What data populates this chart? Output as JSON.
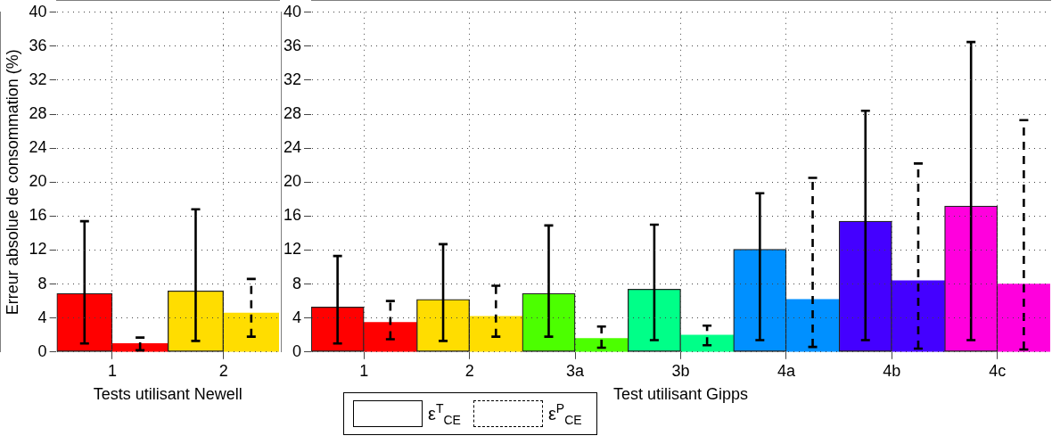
{
  "chart_data": [
    {
      "type": "bar",
      "xlabel": "Tests utilisant Newell",
      "ylabel": "Erreur absolue de consommation (%)",
      "categories": [
        "1",
        "2"
      ],
      "ylim": [
        0,
        40
      ],
      "yticks": [
        0,
        4,
        8,
        12,
        16,
        20,
        24,
        28,
        32,
        36,
        40
      ],
      "grid": true,
      "legend": false,
      "series": [
        {
          "colors": [
            "#ff0000",
            "#ffdd00"
          ],
          "values": [
            6.9,
            7.2
          ],
          "errors": [
            [
              1.0,
              15.4
            ],
            [
              1.3,
              16.8
            ]
          ],
          "line_style": "solid"
        },
        {
          "colors": [
            "#ff0000",
            "#ffdd00"
          ],
          "values": [
            1.0,
            4.6
          ],
          "errors": [
            [
              0.2,
              1.7
            ],
            [
              1.8,
              8.6
            ]
          ],
          "line_style": "dashed"
        }
      ]
    },
    {
      "type": "bar",
      "xlabel": "Test utilisant Gipps",
      "categories": [
        "1",
        "2",
        "3a",
        "3b",
        "4a",
        "4b",
        "4c"
      ],
      "ylim": [
        0,
        40
      ],
      "yticks": [
        0,
        4,
        8,
        12,
        16,
        20,
        24,
        28,
        32,
        36,
        40
      ],
      "grid": true,
      "legend": "bottom left",
      "series": [
        {
          "name": "ε$^{T}$$_{CE}$",
          "colors": [
            "#ff0000",
            "#ffdd00",
            "#4cff00",
            "#00ff88",
            "#0090ff",
            "#4400ff",
            "#ff00dd"
          ],
          "values": [
            5.3,
            6.2,
            6.9,
            7.4,
            12.1,
            15.4,
            17.2
          ],
          "errors": [
            [
              1.0,
              11.3
            ],
            [
              1.3,
              12.7
            ],
            [
              1.8,
              14.9
            ],
            [
              1.4,
              15.0
            ],
            [
              1.4,
              18.7
            ],
            [
              1.4,
              28.4
            ],
            [
              1.4,
              36.5
            ]
          ],
          "line_style": "solid"
        },
        {
          "name": "ε$^{P}$$_{CE}$",
          "colors": [
            "#ff0000",
            "#ffdd00",
            "#4cff00",
            "#00ff88",
            "#0090ff",
            "#4400ff",
            "#ff00dd"
          ],
          "values": [
            3.5,
            4.2,
            1.6,
            2.0,
            6.2,
            8.4,
            8.0
          ],
          "errors": [
            [
              1.5,
              6.0
            ],
            [
              1.8,
              7.8
            ],
            [
              0.5,
              3.0
            ],
            [
              0.8,
              3.1
            ],
            [
              0.6,
              20.5
            ],
            [
              0.4,
              22.2
            ],
            [
              0.3,
              27.3
            ]
          ],
          "line_style": "dashed"
        }
      ]
    }
  ]
}
